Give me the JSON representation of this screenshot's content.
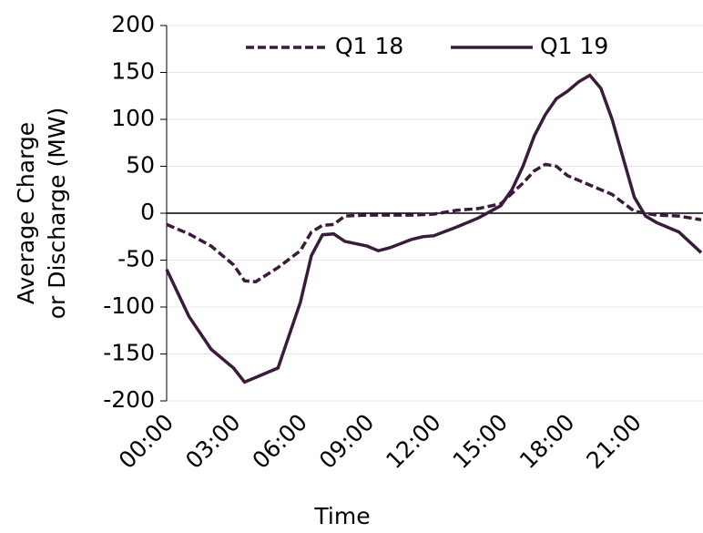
{
  "chart_data": {
    "type": "line",
    "xlabel": "Time",
    "ylabel": [
      "Average Charge",
      "or Discharge (MW)"
    ],
    "xlim": [
      0,
      24
    ],
    "xticks": [
      {
        "value": 0,
        "label": "00:00"
      },
      {
        "value": 3,
        "label": "03:00"
      },
      {
        "value": 6,
        "label": "06:00"
      },
      {
        "value": 9,
        "label": "09:00"
      },
      {
        "value": 12,
        "label": "12:00"
      },
      {
        "value": 15,
        "label": "15:00"
      },
      {
        "value": 18,
        "label": "18:00"
      },
      {
        "value": 21,
        "label": "21:00"
      }
    ],
    "ylim": [
      -200,
      200
    ],
    "yticks": [
      -200,
      -150,
      -100,
      -50,
      0,
      50,
      100,
      150,
      200
    ],
    "grid": true,
    "series": [
      {
        "name": "Q1 18",
        "color": "#3b1b3c",
        "dash": true,
        "x": [
          0,
          1,
          2,
          3,
          3.5,
          4,
          5,
          6,
          6.5,
          7,
          7.5,
          8,
          9,
          10,
          11,
          12,
          13,
          14,
          15,
          16,
          16.5,
          17,
          17.5,
          18,
          19,
          20,
          21,
          22,
          23,
          24
        ],
        "values": [
          -12,
          -22,
          -35,
          -55,
          -72,
          -73,
          -58,
          -40,
          -20,
          -13,
          -12,
          -3,
          -2,
          -2,
          -2,
          -1,
          3,
          5,
          10,
          32,
          45,
          52,
          50,
          40,
          30,
          20,
          2,
          -2,
          -3,
          -7
        ]
      },
      {
        "name": "Q1 19",
        "color": "#3b1b3c",
        "dash": false,
        "x": [
          0,
          1,
          2,
          3,
          3.5,
          4,
          5,
          6,
          6.5,
          7,
          7.5,
          8,
          9,
          9.5,
          10,
          11,
          11.5,
          12,
          13,
          14,
          15,
          15.5,
          16,
          16.5,
          17,
          17.5,
          18,
          18.5,
          19,
          19.5,
          20,
          21,
          21.5,
          22,
          23,
          24
        ],
        "values": [
          -60,
          -110,
          -145,
          -165,
          -180,
          -175,
          -165,
          -95,
          -45,
          -23,
          -22,
          -30,
          -35,
          -40,
          -37,
          -28,
          -25,
          -24,
          -15,
          -5,
          8,
          25,
          50,
          82,
          105,
          122,
          130,
          140,
          147,
          133,
          100,
          17,
          -3,
          -10,
          -20,
          -42
        ]
      }
    ]
  }
}
